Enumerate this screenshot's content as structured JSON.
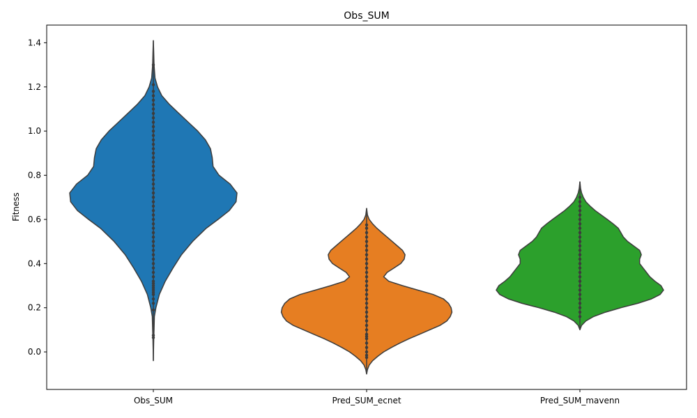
{
  "chart_data": {
    "type": "violin",
    "title": "Obs_SUM",
    "xlabel": "",
    "ylabel": "Fitness",
    "ylim": [
      -0.17,
      1.48
    ],
    "yticks": [
      0.0,
      0.2,
      0.4,
      0.6,
      0.8,
      1.0,
      1.2,
      1.4
    ],
    "ytick_labels": [
      "0.0",
      "0.2",
      "0.4",
      "0.6",
      "0.8",
      "1.0",
      "1.2",
      "1.4"
    ],
    "categories": [
      "Obs_SUM",
      "Pred_SUM_ecnet",
      "Pred_SUM_mavenn"
    ],
    "grid": false,
    "legend": "none",
    "series": [
      {
        "category": "Obs_SUM",
        "color": "#1f77b4",
        "range": [
          -0.04,
          1.41
        ],
        "profile": [
          [
            -0.04,
            0.0
          ],
          [
            0.0,
            0.002
          ],
          [
            0.06,
            0.005
          ],
          [
            0.1,
            0.008
          ],
          [
            0.16,
            0.012
          ],
          [
            0.2,
            0.03
          ],
          [
            0.26,
            0.07
          ],
          [
            0.32,
            0.14
          ],
          [
            0.38,
            0.23
          ],
          [
            0.44,
            0.33
          ],
          [
            0.5,
            0.46
          ],
          [
            0.56,
            0.62
          ],
          [
            0.6,
            0.76
          ],
          [
            0.64,
            0.89
          ],
          [
            0.68,
            0.97
          ],
          [
            0.72,
            0.98
          ],
          [
            0.76,
            0.9
          ],
          [
            0.8,
            0.77
          ],
          [
            0.84,
            0.7
          ],
          [
            0.88,
            0.69
          ],
          [
            0.92,
            0.67
          ],
          [
            0.96,
            0.61
          ],
          [
            1.0,
            0.52
          ],
          [
            1.04,
            0.41
          ],
          [
            1.08,
            0.3
          ],
          [
            1.12,
            0.19
          ],
          [
            1.16,
            0.1
          ],
          [
            1.2,
            0.05
          ],
          [
            1.24,
            0.02
          ],
          [
            1.3,
            0.008
          ],
          [
            1.36,
            0.004
          ],
          [
            1.41,
            0.0
          ]
        ],
        "points": [
          0.065,
          0.075,
          0.19,
          0.22,
          0.24,
          0.26,
          0.27,
          0.28,
          0.29,
          0.3,
          0.31,
          0.32,
          0.34,
          0.36,
          0.38,
          0.4,
          0.42,
          0.44,
          0.46,
          0.48,
          0.5,
          0.52,
          0.54,
          0.56,
          0.58,
          0.6,
          0.62,
          0.64,
          0.66,
          0.68,
          0.7,
          0.72,
          0.74,
          0.76,
          0.78,
          0.8,
          0.82,
          0.84,
          0.86,
          0.88,
          0.9,
          0.92,
          0.94,
          0.96,
          0.98,
          1.0,
          1.02,
          1.04,
          1.06,
          1.08,
          1.1,
          1.12,
          1.14,
          1.16,
          1.18,
          1.21,
          1.3
        ]
      },
      {
        "category": "Pred_SUM_ecnet",
        "color": "#e67e22",
        "range": [
          -0.1,
          0.65
        ],
        "profile": [
          [
            -0.1,
            0.0
          ],
          [
            -0.08,
            0.01
          ],
          [
            -0.06,
            0.03
          ],
          [
            -0.04,
            0.07
          ],
          [
            -0.02,
            0.13
          ],
          [
            0.0,
            0.2
          ],
          [
            0.02,
            0.29
          ],
          [
            0.04,
            0.39
          ],
          [
            0.06,
            0.5
          ],
          [
            0.08,
            0.62
          ],
          [
            0.1,
            0.74
          ],
          [
            0.12,
            0.86
          ],
          [
            0.14,
            0.94
          ],
          [
            0.16,
            0.98
          ],
          [
            0.18,
            1.0
          ],
          [
            0.2,
            0.99
          ],
          [
            0.22,
            0.96
          ],
          [
            0.24,
            0.9
          ],
          [
            0.26,
            0.78
          ],
          [
            0.28,
            0.6
          ],
          [
            0.3,
            0.42
          ],
          [
            0.32,
            0.26
          ],
          [
            0.34,
            0.2
          ],
          [
            0.36,
            0.24
          ],
          [
            0.38,
            0.32
          ],
          [
            0.4,
            0.4
          ],
          [
            0.42,
            0.44
          ],
          [
            0.44,
            0.45
          ],
          [
            0.46,
            0.42
          ],
          [
            0.48,
            0.36
          ],
          [
            0.5,
            0.3
          ],
          [
            0.52,
            0.24
          ],
          [
            0.54,
            0.18
          ],
          [
            0.56,
            0.12
          ],
          [
            0.58,
            0.07
          ],
          [
            0.6,
            0.03
          ],
          [
            0.62,
            0.01
          ],
          [
            0.65,
            0.0
          ]
        ],
        "points": [
          -0.025,
          -0.015,
          0.0,
          0.02,
          0.04,
          0.06,
          0.07,
          0.08,
          0.1,
          0.12,
          0.14,
          0.16,
          0.18,
          0.2,
          0.22,
          0.24,
          0.26,
          0.28,
          0.3,
          0.32,
          0.34,
          0.36,
          0.38,
          0.4,
          0.42,
          0.44,
          0.46,
          0.48,
          0.5,
          0.52,
          0.54,
          0.56,
          0.575
        ]
      },
      {
        "category": "Pred_SUM_mavenn",
        "color": "#2ca02c",
        "range": [
          0.1,
          0.77
        ],
        "profile": [
          [
            0.1,
            0.0
          ],
          [
            0.12,
            0.02
          ],
          [
            0.14,
            0.07
          ],
          [
            0.16,
            0.16
          ],
          [
            0.18,
            0.3
          ],
          [
            0.2,
            0.48
          ],
          [
            0.22,
            0.68
          ],
          [
            0.24,
            0.84
          ],
          [
            0.26,
            0.94
          ],
          [
            0.28,
            0.98
          ],
          [
            0.3,
            0.95
          ],
          [
            0.32,
            0.88
          ],
          [
            0.34,
            0.82
          ],
          [
            0.36,
            0.78
          ],
          [
            0.38,
            0.74
          ],
          [
            0.4,
            0.7
          ],
          [
            0.42,
            0.7
          ],
          [
            0.44,
            0.72
          ],
          [
            0.46,
            0.7
          ],
          [
            0.48,
            0.63
          ],
          [
            0.5,
            0.56
          ],
          [
            0.52,
            0.51
          ],
          [
            0.54,
            0.48
          ],
          [
            0.56,
            0.45
          ],
          [
            0.58,
            0.39
          ],
          [
            0.6,
            0.32
          ],
          [
            0.62,
            0.25
          ],
          [
            0.64,
            0.18
          ],
          [
            0.66,
            0.12
          ],
          [
            0.68,
            0.07
          ],
          [
            0.7,
            0.04
          ],
          [
            0.72,
            0.02
          ],
          [
            0.74,
            0.008
          ],
          [
            0.77,
            0.0
          ]
        ],
        "points": [
          0.16,
          0.18,
          0.2,
          0.22,
          0.24,
          0.26,
          0.28,
          0.3,
          0.32,
          0.34,
          0.36,
          0.38,
          0.4,
          0.42,
          0.44,
          0.46,
          0.48,
          0.5,
          0.52,
          0.54,
          0.56,
          0.58,
          0.6,
          0.62,
          0.64,
          0.66,
          0.68,
          0.7
        ]
      }
    ]
  }
}
